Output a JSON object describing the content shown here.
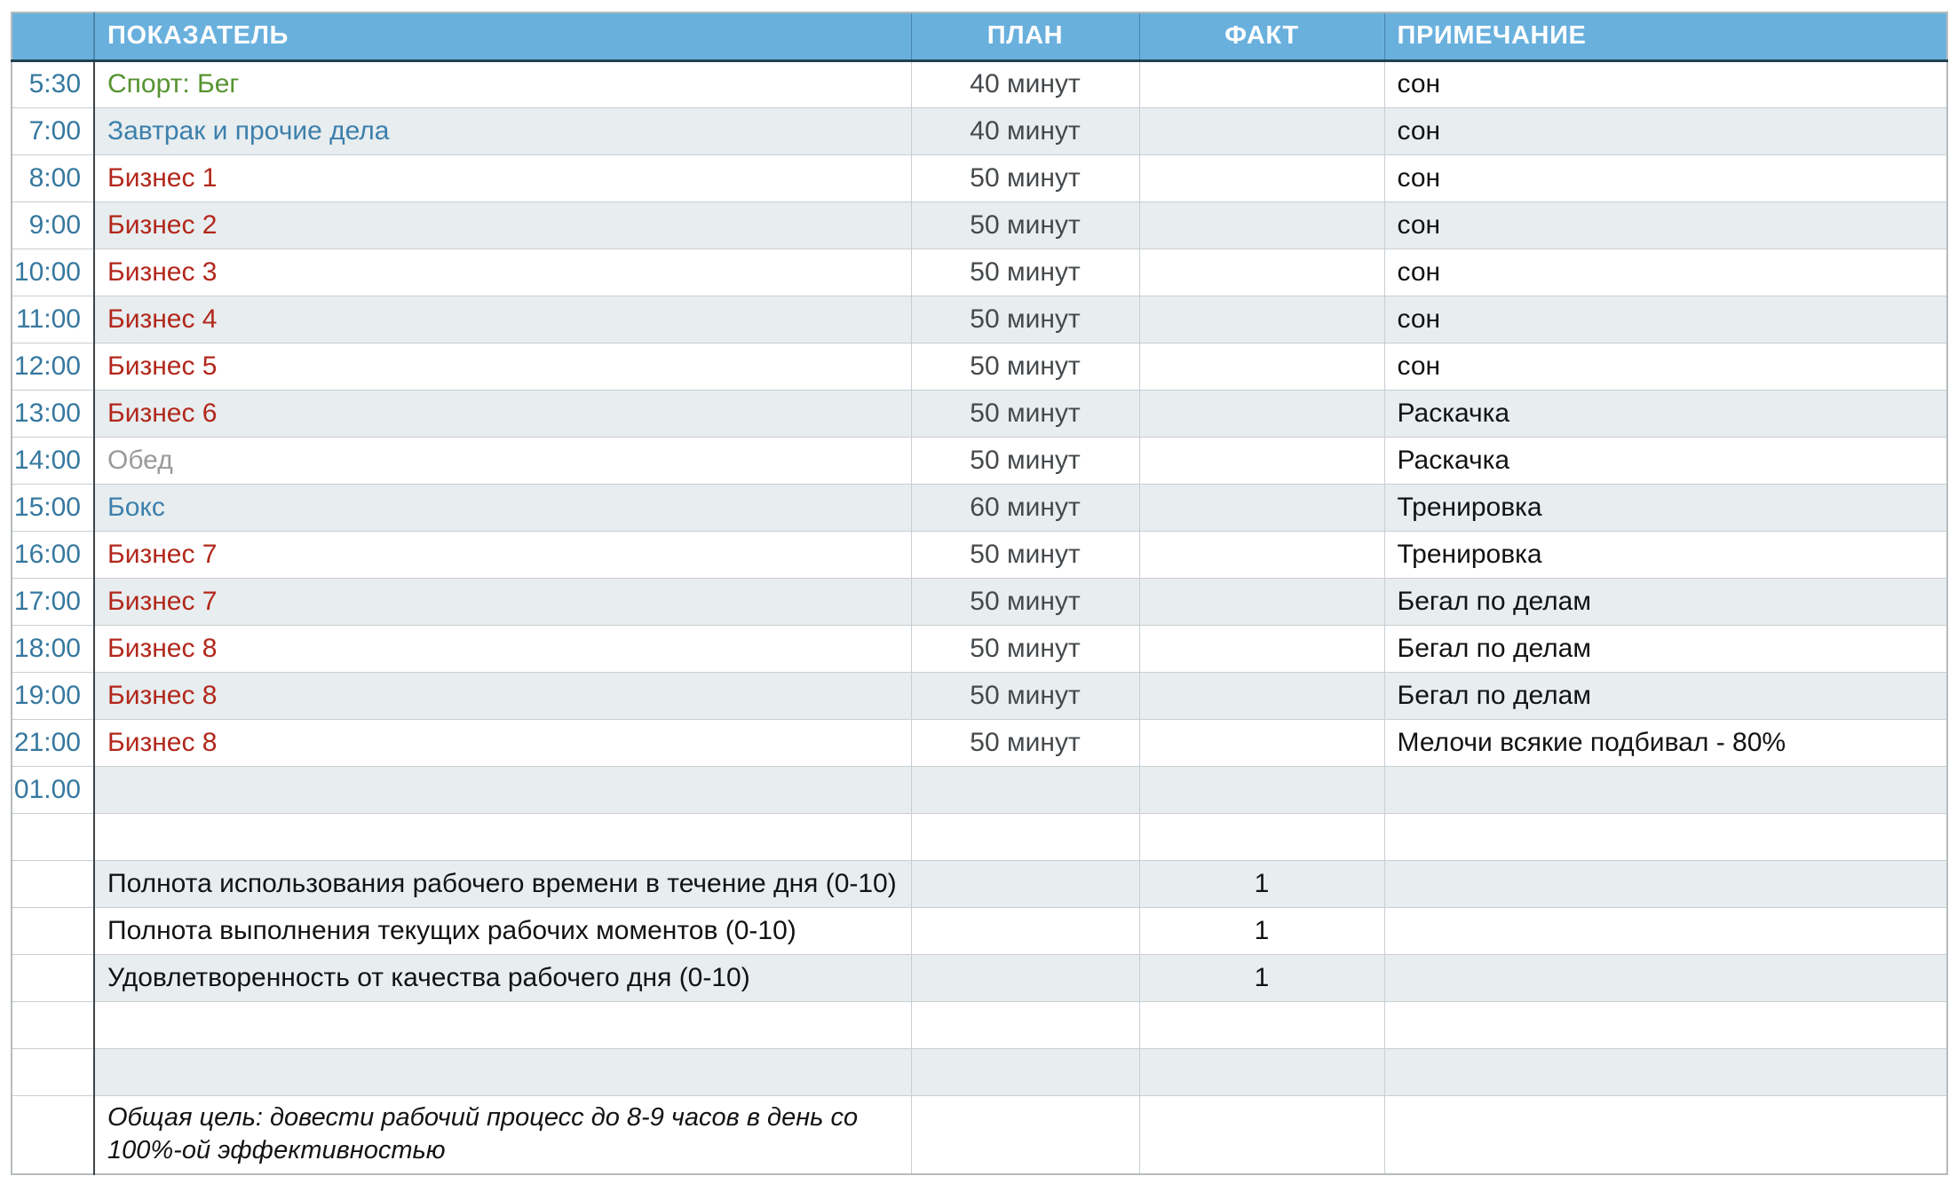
{
  "colors": {
    "header-bg": "#69b0dd",
    "header-text": "#ffffff",
    "header-line": "#22404f",
    "stripe": "#e8edef",
    "grid": "#c9ced2",
    "outer": "#b7bcbe",
    "time-divider": "#3f4449",
    "time-text": "#36789f",
    "plan-text": "#45494c",
    "text-black": "#111315",
    "red": "#b2271b",
    "green": "#569331",
    "blue": "#3c80ac",
    "gray": "#97999b"
  },
  "header": {
    "time": "",
    "indicator": "ПОКАЗАТЕЛЬ",
    "plan": "ПЛАН",
    "fact": "ФАКТ",
    "note": "ПРИМЕЧАНИЕ"
  },
  "rows": [
    {
      "time": "5:30",
      "indicator": "Спорт: Бег",
      "plan": "40 минут",
      "fact": "",
      "note": "сон"
    },
    {
      "time": "7:00",
      "indicator": "Завтрак и прочие дела",
      "plan": "40 минут",
      "fact": "",
      "note": "сон"
    },
    {
      "time": "8:00",
      "indicator": "Бизнес 1",
      "plan": "50 минут",
      "fact": "",
      "note": "сон"
    },
    {
      "time": "9:00",
      "indicator": "Бизнес 2",
      "plan": "50 минут",
      "fact": "",
      "note": "сон"
    },
    {
      "time": "10:00",
      "indicator": "Бизнес 3",
      "plan": "50 минут",
      "fact": "",
      "note": "сон"
    },
    {
      "time": "11:00",
      "indicator": "Бизнес 4",
      "plan": "50 минут",
      "fact": "",
      "note": "сон"
    },
    {
      "time": "12:00",
      "indicator": "Бизнес 5",
      "plan": "50 минут",
      "fact": "",
      "note": "сон"
    },
    {
      "time": "13:00",
      "indicator": "Бизнес 6",
      "plan": "50 минут",
      "fact": "",
      "note": "Раскачка"
    },
    {
      "time": "14:00",
      "indicator": "Обед",
      "plan": "50 минут",
      "fact": "",
      "note": "Раскачка"
    },
    {
      "time": "15:00",
      "indicator": "Бокс",
      "plan": "60 минут",
      "fact": "",
      "note": "Тренировка"
    },
    {
      "time": "16:00",
      "indicator": "Бизнес 7",
      "plan": "50 минут",
      "fact": "",
      "note": "Тренировка"
    },
    {
      "time": "17:00",
      "indicator": "Бизнес 7",
      "plan": "50 минут",
      "fact": "",
      "note": "Бегал по делам"
    },
    {
      "time": "18:00",
      "indicator": "Бизнес 8",
      "plan": "50 минут",
      "fact": "",
      "note": "Бегал по делам"
    },
    {
      "time": "19:00",
      "indicator": "Бизнес 8",
      "plan": "50 минут",
      "fact": "",
      "note": "Бегал по делам"
    },
    {
      "time": "21:00",
      "indicator": "Бизнес 8",
      "plan": "50 минут",
      "fact": "",
      "note": "Мелочи всякие подбивал - 80%"
    },
    {
      "time": "01.00",
      "indicator": "",
      "plan": "",
      "fact": "",
      "note": ""
    },
    {
      "time": "",
      "indicator": "",
      "plan": "",
      "fact": "",
      "note": ""
    },
    {
      "time": "",
      "indicator": "Полнота использования рабочего времени в течение дня (0-10)",
      "plan": "",
      "fact": "1",
      "note": ""
    },
    {
      "time": "",
      "indicator": "Полнота выполнения текущих рабочих моментов (0-10)",
      "plan": "",
      "fact": "1",
      "note": ""
    },
    {
      "time": "",
      "indicator": "Удовлетворенность от качества рабочего дня (0-10)",
      "plan": "",
      "fact": "1",
      "note": ""
    },
    {
      "time": "",
      "indicator": "",
      "plan": "",
      "fact": "",
      "note": ""
    },
    {
      "time": "",
      "indicator": "",
      "plan": "",
      "fact": "",
      "note": ""
    },
    {
      "time": "",
      "indicator": "Общая цель: довести рабочий процесс до 8-9 часов в день со 100%-ой эффективностью",
      "plan": "",
      "fact": "",
      "note": ""
    }
  ]
}
